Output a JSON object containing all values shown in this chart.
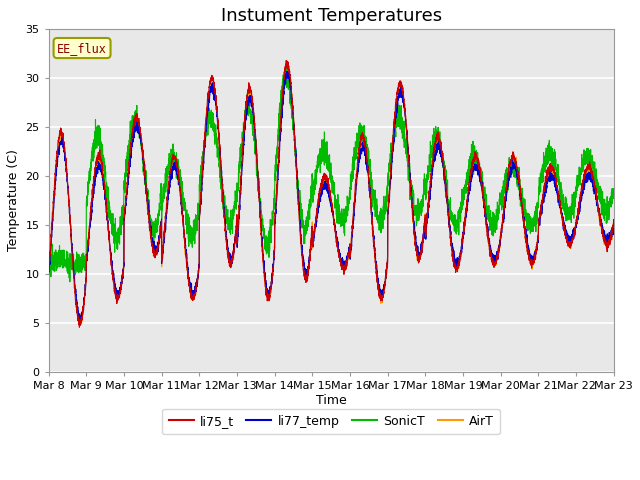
{
  "title": "Instument Temperatures",
  "xlabel": "Time",
  "ylabel": "Temperature (C)",
  "ylim": [
    0,
    35
  ],
  "background_color": "#e8e8e8",
  "line_colors": {
    "li75_t": "#cc0000",
    "li77_temp": "#0000cc",
    "SonicT": "#00bb00",
    "AirT": "#ff9900"
  },
  "xtick_labels": [
    "Mar 8",
    "Mar 9",
    "Mar 10",
    "Mar 11",
    "Mar 12",
    "Mar 13",
    "Mar 14",
    "Mar 15",
    "Mar 16",
    "Mar 17",
    "Mar 18",
    "Mar 19",
    "Mar 20",
    "Mar 21",
    "Mar 22",
    "Mar 23"
  ],
  "annotation": "EE_flux",
  "title_fontsize": 13,
  "axis_fontsize": 9,
  "tick_fontsize": 8,
  "day_peaks": [
    24.5,
    22.0,
    26.0,
    22.0,
    30.0,
    29.0,
    31.5,
    20.0,
    24.0,
    29.5,
    24.0,
    22.0,
    22.0,
    21.0,
    21.0
  ],
  "day_mins": [
    5.0,
    7.5,
    12.0,
    7.5,
    11.0,
    7.5,
    9.5,
    10.5,
    7.5,
    11.5,
    10.5,
    11.0,
    11.0,
    13.0,
    13.0
  ],
  "sonic_peaks": [
    11.5,
    24.0,
    26.0,
    22.0,
    26.0,
    27.0,
    30.0,
    22.5,
    24.5,
    26.0,
    24.0,
    22.0,
    21.0,
    22.5,
    22.0
  ],
  "sonic_mins": [
    11.0,
    13.5,
    14.5,
    14.0,
    15.0,
    13.0,
    14.5,
    15.5,
    15.5,
    16.0,
    15.0,
    15.0,
    15.0,
    16.0,
    16.5
  ]
}
